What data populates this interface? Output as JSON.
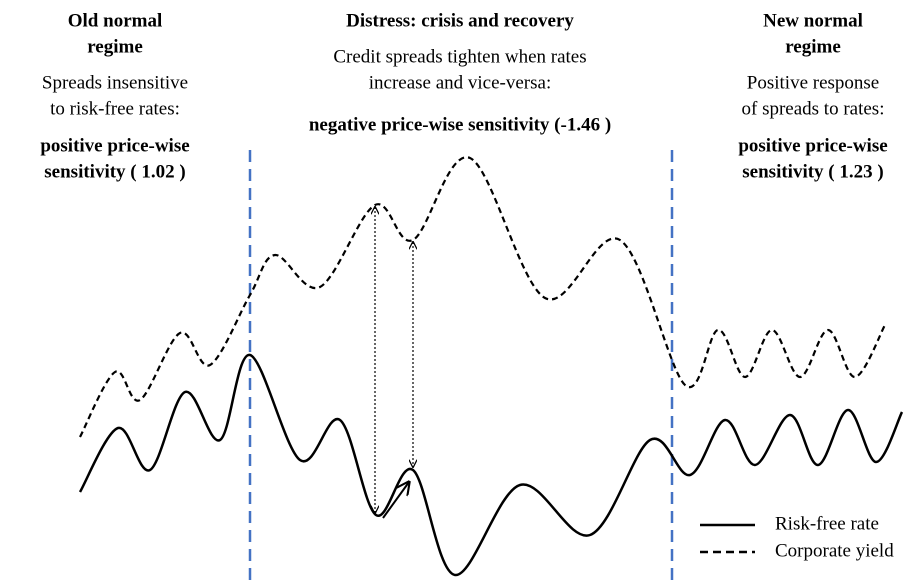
{
  "regimes": [
    {
      "title": [
        "Old normal",
        "regime"
      ],
      "description": [
        "Spreads insensitive",
        "to risk-free rates:"
      ],
      "sensitivity": [
        "positive price-wise",
        "sensitivity ( 1.02 )"
      ]
    },
    {
      "title": [
        "Distress: crisis and recovery"
      ],
      "description": [
        "Credit spreads tighten when rates",
        "increase and vice-versa:"
      ],
      "sensitivity": [
        "negative price-wise sensitivity (-1.46 )"
      ]
    },
    {
      "title": [
        "New normal",
        "regime"
      ],
      "description": [
        "Positive response",
        "of spreads to rates:"
      ],
      "sensitivity": [
        "positive price-wise",
        "sensitivity ( 1.23 )"
      ]
    }
  ],
  "legend": [
    "Risk-free rate",
    "Corporate yield"
  ]
}
